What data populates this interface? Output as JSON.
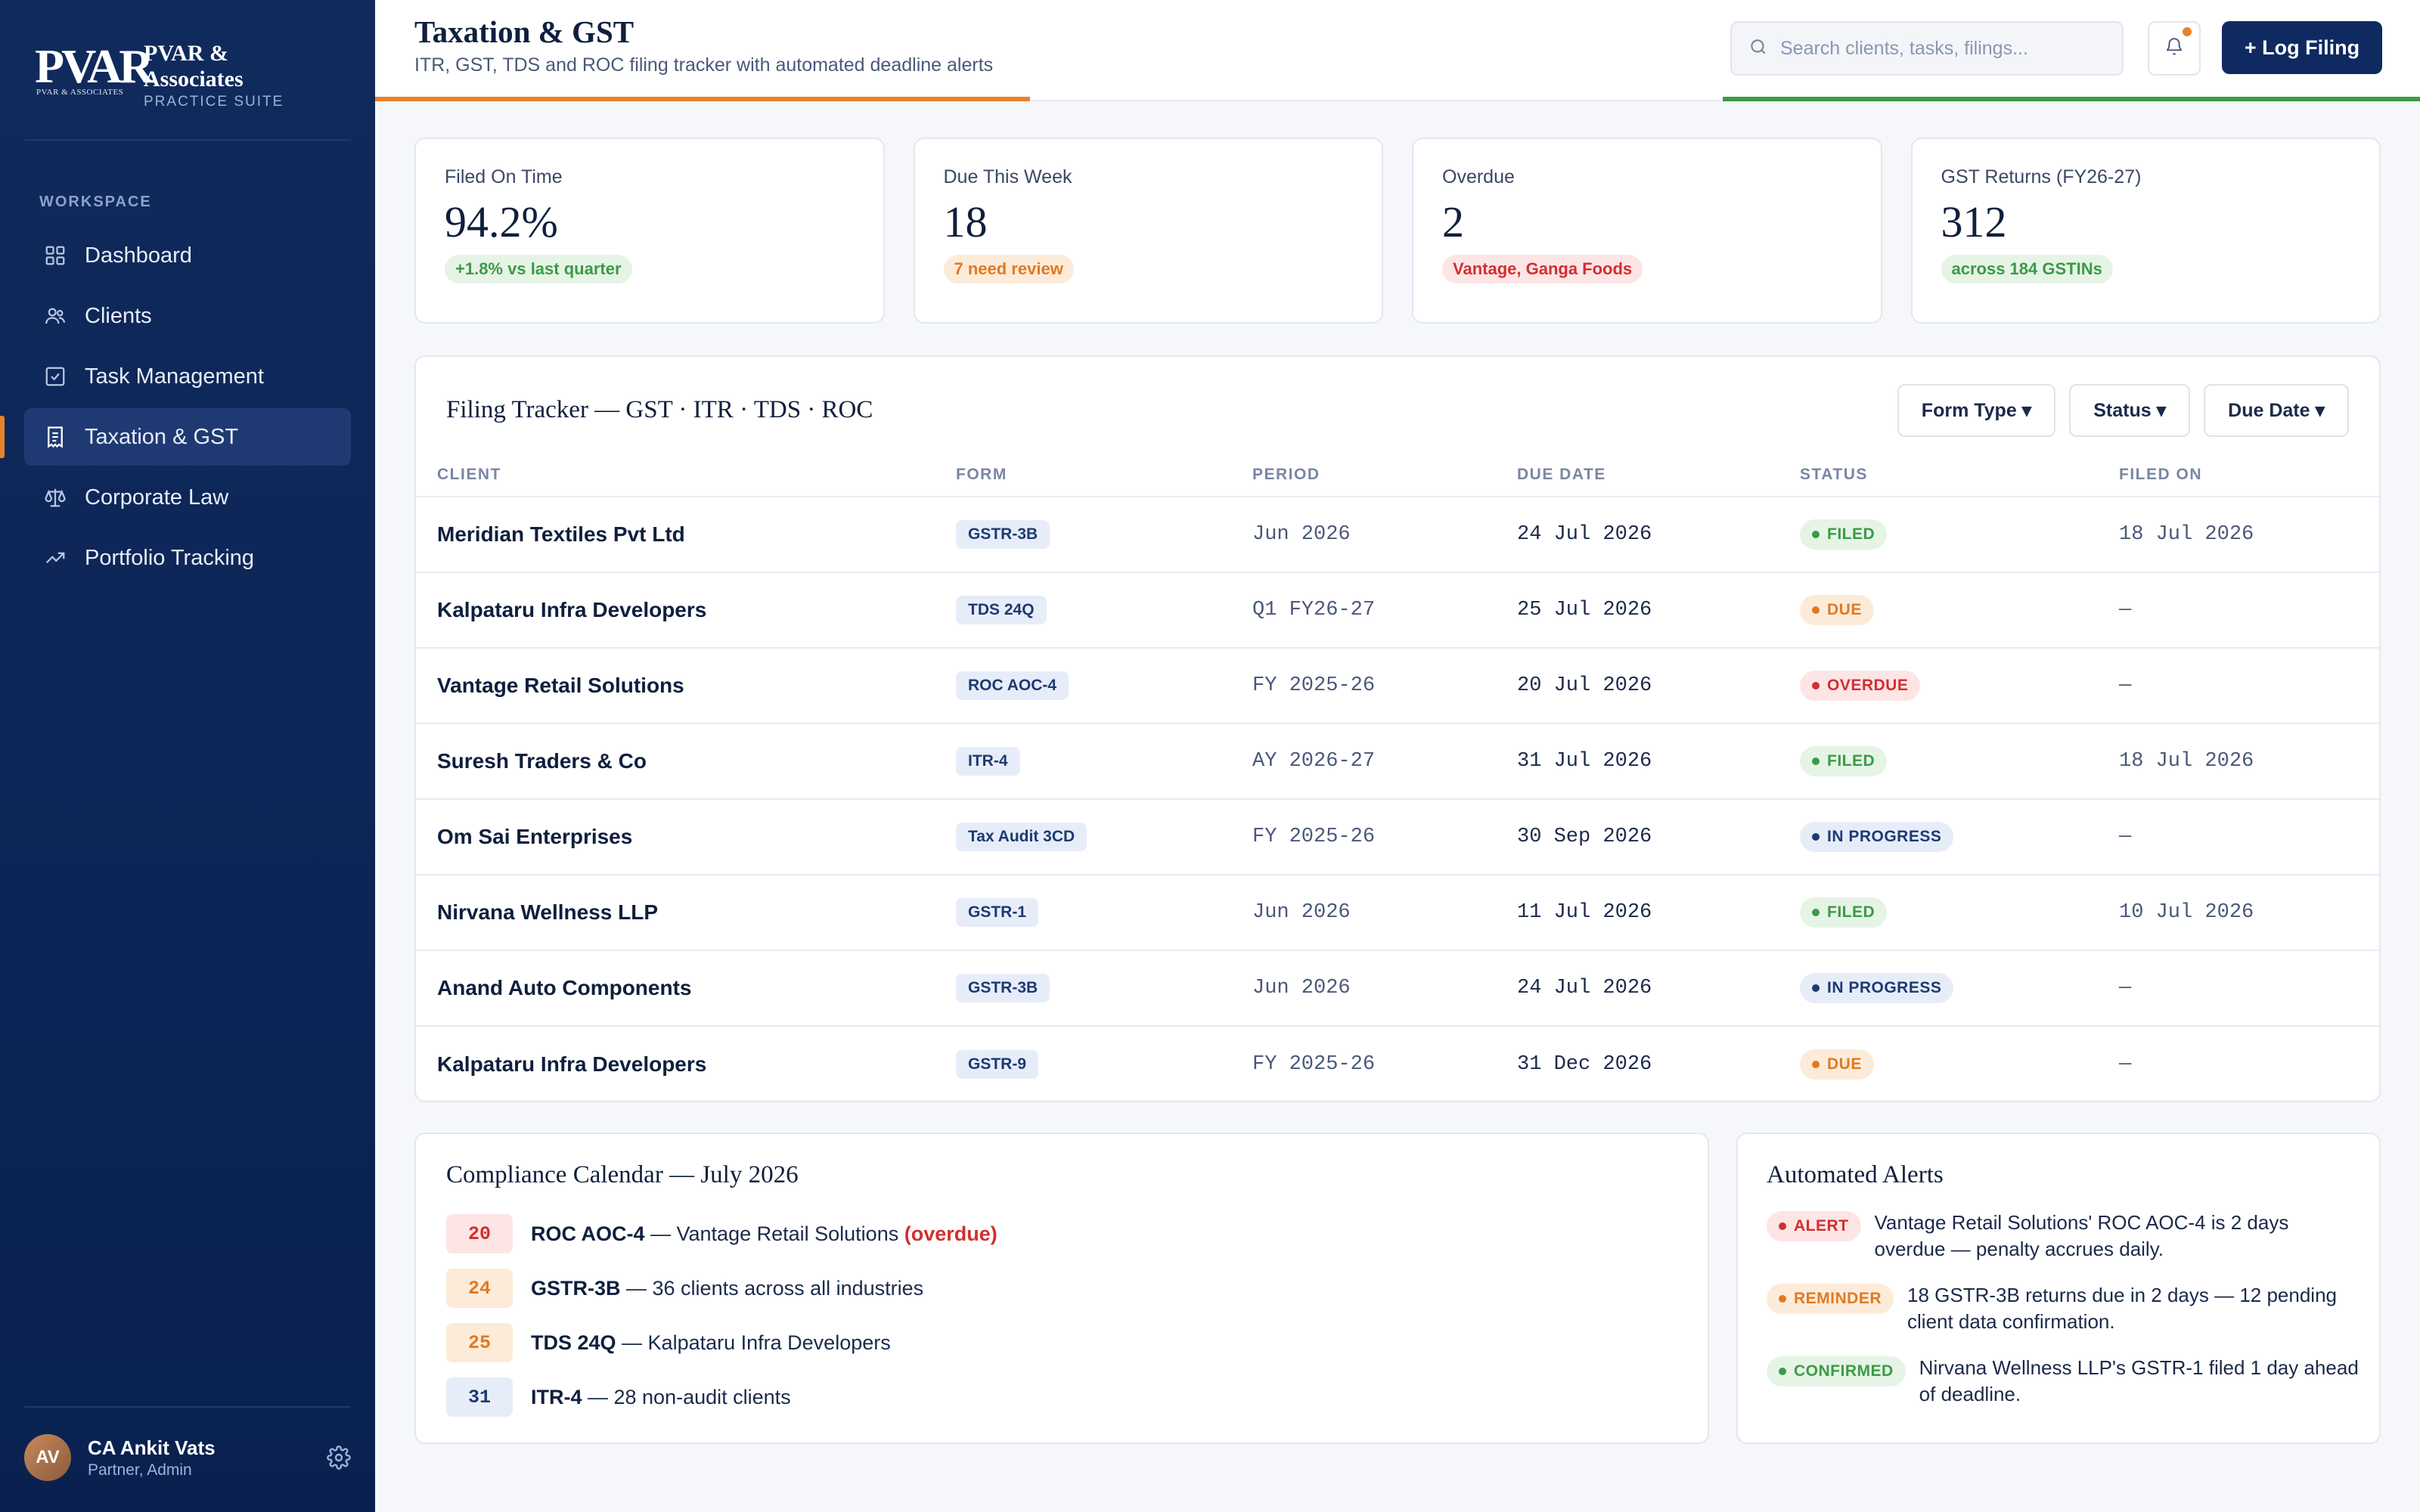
{
  "brand": {
    "logo_text": "PVAR",
    "logo_sub": "PVAR & ASSOCIATES",
    "name_line1": "PVAR &",
    "name_line2": "Associates",
    "tagline": "PRACTICE SUITE"
  },
  "sidebar": {
    "section_label": "WORKSPACE",
    "items": [
      {
        "label": "Dashboard",
        "icon": "grid-icon"
      },
      {
        "label": "Clients",
        "icon": "users-icon"
      },
      {
        "label": "Task Management",
        "icon": "checkbox-icon"
      },
      {
        "label": "Taxation & GST",
        "icon": "receipt-icon",
        "active": true
      },
      {
        "label": "Corporate Law",
        "icon": "scales-icon"
      },
      {
        "label": "Portfolio Tracking",
        "icon": "trend-icon"
      }
    ],
    "user": {
      "initials": "AV",
      "name": "CA Ankit Vats",
      "role": "Partner, Admin"
    }
  },
  "header": {
    "title": "Taxation & GST",
    "subtitle": "ITR, GST, TDS and ROC filing tracker with automated deadline alerts",
    "search_placeholder": "Search clients, tasks, filings...",
    "log_button": "+ Log Filing"
  },
  "kpis": [
    {
      "label": "Filed On Time",
      "value": "94.2%",
      "note": "+1.8% vs last quarter",
      "tone": "green"
    },
    {
      "label": "Due This Week",
      "value": "18",
      "note": "7 need review",
      "tone": "orange"
    },
    {
      "label": "Overdue",
      "value": "2",
      "note": "Vantage, Ganga Foods",
      "tone": "red"
    },
    {
      "label": "GST Returns (FY26-27)",
      "value": "312",
      "note": "across 184 GSTINs",
      "tone": "green"
    }
  ],
  "tracker": {
    "title": "Filing Tracker — GST · ITR · TDS · ROC",
    "filters": [
      "Form Type ▾",
      "Status ▾",
      "Due Date ▾"
    ],
    "columns": [
      "CLIENT",
      "FORM",
      "PERIOD",
      "DUE DATE",
      "STATUS",
      "FILED ON"
    ],
    "rows": [
      {
        "client": "Meridian Textiles Pvt Ltd",
        "form": "GSTR-3B",
        "period": "Jun 2026",
        "due": "24 Jul 2026",
        "status": "FILED",
        "filed": "18 Jul 2026"
      },
      {
        "client": "Kalpataru Infra Developers",
        "form": "TDS 24Q",
        "period": "Q1 FY26-27",
        "due": "25 Jul 2026",
        "status": "DUE",
        "filed": "—"
      },
      {
        "client": "Vantage Retail Solutions",
        "form": "ROC AOC-4",
        "period": "FY 2025-26",
        "due": "20 Jul 2026",
        "status": "OVERDUE",
        "filed": "—"
      },
      {
        "client": "Suresh Traders & Co",
        "form": "ITR-4",
        "period": "AY 2026-27",
        "due": "31 Jul 2026",
        "status": "FILED",
        "filed": "18 Jul 2026"
      },
      {
        "client": "Om Sai Enterprises",
        "form": "Tax Audit 3CD",
        "period": "FY 2025-26",
        "due": "30 Sep 2026",
        "status": "IN PROGRESS",
        "filed": "—"
      },
      {
        "client": "Nirvana Wellness LLP",
        "form": "GSTR-1",
        "period": "Jun 2026",
        "due": "11 Jul 2026",
        "status": "FILED",
        "filed": "10 Jul 2026"
      },
      {
        "client": "Anand Auto Components",
        "form": "GSTR-3B",
        "period": "Jun 2026",
        "due": "24 Jul 2026",
        "status": "IN PROGRESS",
        "filed": "—"
      },
      {
        "client": "Kalpataru Infra Developers",
        "form": "GSTR-9",
        "period": "FY 2025-26",
        "due": "31 Dec 2026",
        "status": "DUE",
        "filed": "—"
      }
    ]
  },
  "calendar": {
    "title": "Compliance Calendar — July 2026",
    "items": [
      {
        "day": "20",
        "form": "ROC AOC-4",
        "text": " — Vantage Retail Solutions ",
        "flag": "(overdue)",
        "tone": "red"
      },
      {
        "day": "24",
        "form": "GSTR-3B",
        "text": " — 36 clients across all industries",
        "flag": "",
        "tone": "orange"
      },
      {
        "day": "25",
        "form": "TDS 24Q",
        "text": " — Kalpataru Infra Developers",
        "flag": "",
        "tone": "orange"
      },
      {
        "day": "31",
        "form": "ITR-4",
        "text": " — 28 non-audit clients",
        "flag": "",
        "tone": "blue"
      }
    ]
  },
  "alerts": {
    "title": "Automated Alerts",
    "items": [
      {
        "tag": "ALERT",
        "tone": "red",
        "message": "Vantage Retail Solutions' ROC AOC-4 is 2 days overdue — penalty accrues daily."
      },
      {
        "tag": "REMINDER",
        "tone": "orange",
        "message": "18 GSTR-3B returns due in 2 days — 12 pending client data confirmation."
      },
      {
        "tag": "CONFIRMED",
        "tone": "green",
        "message": "Nirvana Wellness LLP's GSTR-1 filed 1 day ahead of deadline."
      }
    ]
  },
  "colors": {
    "navy": "#0f2a60",
    "accent": "#e8822d",
    "green": "#3c9a47",
    "red": "#d22f2f"
  }
}
